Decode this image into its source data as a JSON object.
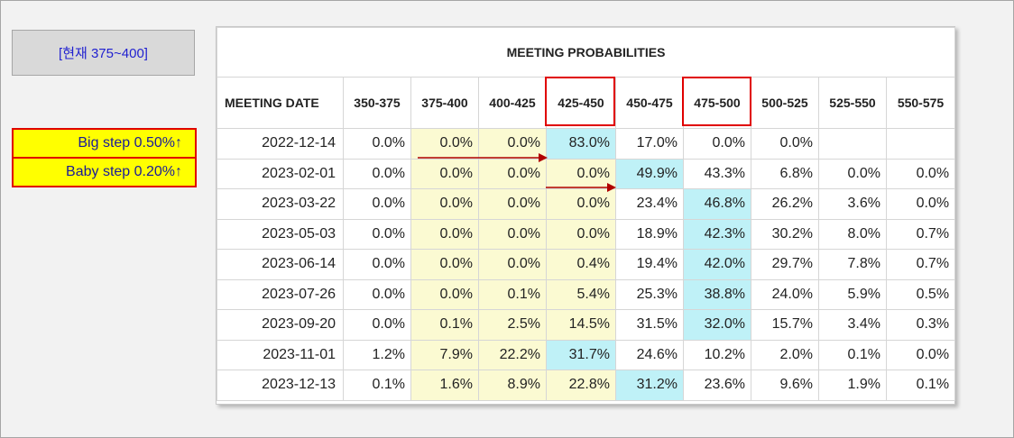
{
  "current_range_label": "[현재 375~400]",
  "big_step_label": "Big step 0.50%↑",
  "baby_step_label": "Baby step 0.20%↑",
  "table_title": "MEETING PROBABILITIES",
  "columns": [
    "MEETING DATE",
    "350-375",
    "375-400",
    "400-425",
    "425-450",
    "450-475",
    "475-500",
    "500-525",
    "525-550",
    "550-575"
  ],
  "highlighted_columns": [
    "425-450",
    "475-500"
  ],
  "rows": [
    {
      "date": "2022-12-14",
      "values": [
        "0.0%",
        "0.0%",
        "0.0%",
        "83.0%",
        "17.0%",
        "0.0%",
        "0.0%",
        "",
        ""
      ],
      "styles": [
        "",
        "y",
        "y",
        "c",
        "",
        "",
        "",
        "",
        ""
      ]
    },
    {
      "date": "2023-02-01",
      "values": [
        "0.0%",
        "0.0%",
        "0.0%",
        "0.0%",
        "49.9%",
        "43.3%",
        "6.8%",
        "0.0%",
        "0.0%"
      ],
      "styles": [
        "",
        "y",
        "y",
        "y",
        "c",
        "",
        "",
        "",
        ""
      ]
    },
    {
      "date": "2023-03-22",
      "values": [
        "0.0%",
        "0.0%",
        "0.0%",
        "0.0%",
        "23.4%",
        "46.8%",
        "26.2%",
        "3.6%",
        "0.0%"
      ],
      "styles": [
        "",
        "y",
        "y",
        "y",
        "",
        "c",
        "",
        "",
        ""
      ]
    },
    {
      "date": "2023-05-03",
      "values": [
        "0.0%",
        "0.0%",
        "0.0%",
        "0.0%",
        "18.9%",
        "42.3%",
        "30.2%",
        "8.0%",
        "0.7%"
      ],
      "styles": [
        "",
        "y",
        "y",
        "y",
        "",
        "c",
        "",
        "",
        ""
      ]
    },
    {
      "date": "2023-06-14",
      "values": [
        "0.0%",
        "0.0%",
        "0.0%",
        "0.4%",
        "19.4%",
        "42.0%",
        "29.7%",
        "7.8%",
        "0.7%"
      ],
      "styles": [
        "",
        "y",
        "y",
        "y",
        "",
        "c",
        "",
        "",
        ""
      ]
    },
    {
      "date": "2023-07-26",
      "values": [
        "0.0%",
        "0.0%",
        "0.1%",
        "5.4%",
        "25.3%",
        "38.8%",
        "24.0%",
        "5.9%",
        "0.5%"
      ],
      "styles": [
        "",
        "y",
        "y",
        "y",
        "",
        "c",
        "",
        "",
        ""
      ]
    },
    {
      "date": "2023-09-20",
      "values": [
        "0.0%",
        "0.1%",
        "2.5%",
        "14.5%",
        "31.5%",
        "32.0%",
        "15.7%",
        "3.4%",
        "0.3%"
      ],
      "styles": [
        "",
        "y",
        "y",
        "y",
        "",
        "c",
        "",
        "",
        ""
      ]
    },
    {
      "date": "2023-11-01",
      "values": [
        "1.2%",
        "7.9%",
        "22.2%",
        "31.7%",
        "24.6%",
        "10.2%",
        "2.0%",
        "0.1%",
        "0.0%"
      ],
      "styles": [
        "",
        "y",
        "y",
        "c",
        "",
        "",
        "",
        "",
        ""
      ]
    },
    {
      "date": "2023-12-13",
      "values": [
        "0.1%",
        "1.6%",
        "8.9%",
        "22.8%",
        "31.2%",
        "23.6%",
        "9.6%",
        "1.9%",
        "0.1%"
      ],
      "styles": [
        "",
        "y",
        "y",
        "y",
        "c",
        "",
        "",
        "",
        ""
      ]
    }
  ],
  "colors": {
    "highlight_yellow": "#fbfad2",
    "highlight_cyan": "#bff1f7",
    "accent_red": "#e00000",
    "step_yellow": "#ffff00",
    "label_blue": "#1f1fd0"
  },
  "icons": [
    "right-arrow-icon",
    "right-arrow-icon"
  ]
}
